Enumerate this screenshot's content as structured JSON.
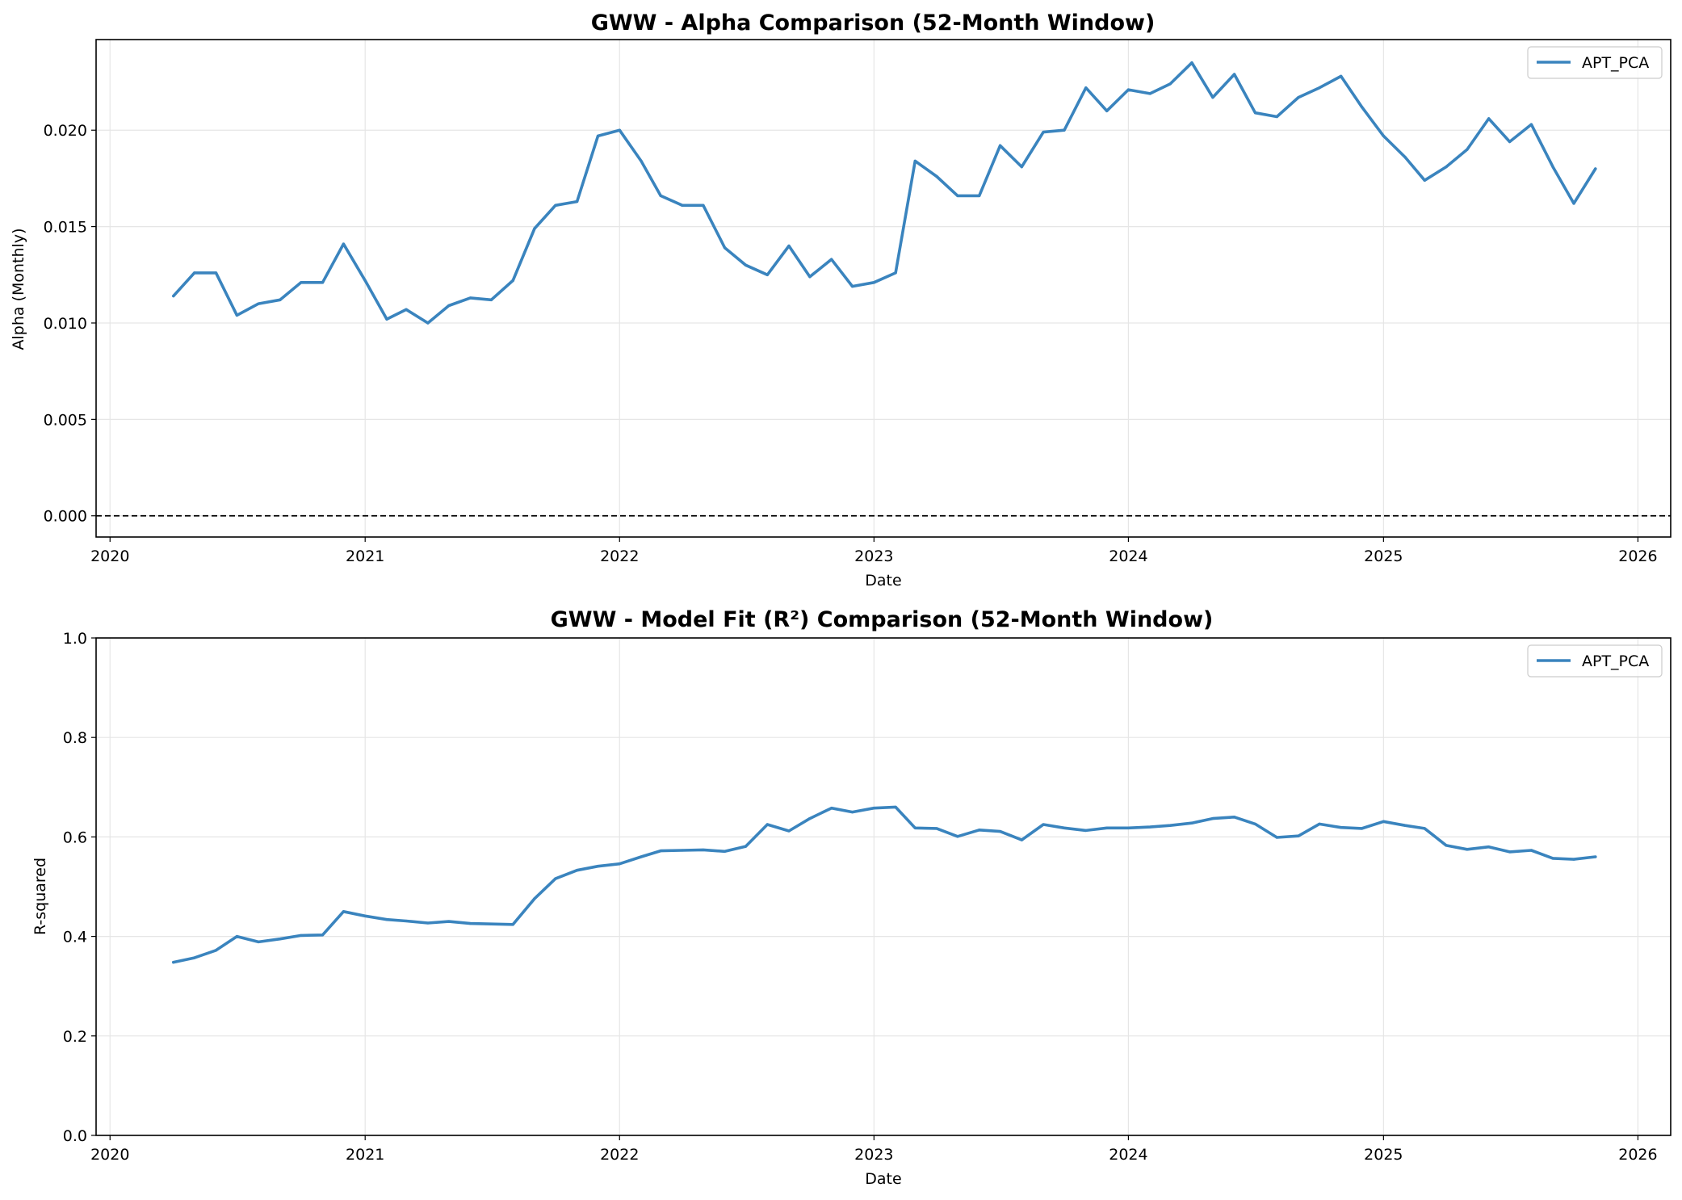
{
  "chart_data": [
    {
      "type": "line",
      "title": "GWW - Alpha Comparison (52-Month Window)",
      "xlabel": "Date",
      "ylabel": "Alpha (Monthly)",
      "xlim": [
        "2019-12-12",
        "2026-02-17"
      ],
      "ylim": [
        -0.0011,
        0.0247
      ],
      "x_ticks": [
        "2020",
        "2021",
        "2022",
        "2023",
        "2024",
        "2025",
        "2026"
      ],
      "y_ticks": [
        "0.000",
        "0.005",
        "0.010",
        "0.015",
        "0.020"
      ],
      "grid": true,
      "legend_position": "top-right",
      "reference_line": {
        "y": 0,
        "style": "dashed",
        "color": "#000000"
      },
      "series": [
        {
          "name": "APT_PCA",
          "color": "#3a84be",
          "x": [
            "2020-04-01",
            "2020-05-01",
            "2020-06-01",
            "2020-07-01",
            "2020-08-01",
            "2020-09-01",
            "2020-10-01",
            "2020-11-01",
            "2020-12-01",
            "2021-01-01",
            "2021-02-01",
            "2021-03-01",
            "2021-04-01",
            "2021-05-01",
            "2021-06-01",
            "2021-07-01",
            "2021-08-01",
            "2021-09-01",
            "2021-10-01",
            "2021-11-01",
            "2021-12-01",
            "2022-01-01",
            "2022-02-01",
            "2022-03-01",
            "2022-04-01",
            "2022-05-01",
            "2022-06-01",
            "2022-07-01",
            "2022-08-01",
            "2022-09-01",
            "2022-10-01",
            "2022-11-01",
            "2022-12-01",
            "2023-01-01",
            "2023-02-01",
            "2023-03-01",
            "2023-04-01",
            "2023-05-01",
            "2023-06-01",
            "2023-07-01",
            "2023-08-01",
            "2023-09-01",
            "2023-10-01",
            "2023-11-01",
            "2023-12-01",
            "2024-01-01",
            "2024-02-01",
            "2024-03-01",
            "2024-04-01",
            "2024-05-01",
            "2024-06-01",
            "2024-07-01",
            "2024-08-01",
            "2024-09-01",
            "2024-10-01",
            "2024-11-01",
            "2024-12-01",
            "2025-01-01",
            "2025-02-01",
            "2025-03-01",
            "2025-04-01",
            "2025-05-01",
            "2025-06-01",
            "2025-07-01",
            "2025-08-01",
            "2025-09-01",
            "2025-10-01",
            "2025-11-01"
          ],
          "y": [
            0.0114,
            0.0126,
            0.0126,
            0.0104,
            0.011,
            0.0112,
            0.0121,
            0.0121,
            0.0141,
            0.0122,
            0.0102,
            0.0107,
            0.01,
            0.0109,
            0.0113,
            0.0112,
            0.0122,
            0.0149,
            0.0161,
            0.0163,
            0.0197,
            0.02,
            0.0184,
            0.0166,
            0.0161,
            0.0161,
            0.0139,
            0.013,
            0.0125,
            0.014,
            0.0124,
            0.0133,
            0.0119,
            0.0121,
            0.0126,
            0.0184,
            0.0176,
            0.0166,
            0.0166,
            0.0192,
            0.0181,
            0.0199,
            0.02,
            0.0222,
            0.021,
            0.0221,
            0.0219,
            0.0224,
            0.0235,
            0.0217,
            0.0229,
            0.0209,
            0.0207,
            0.0217,
            0.0222,
            0.0228,
            0.0212,
            0.0197,
            0.0186,
            0.0174,
            0.0181,
            0.019,
            0.0206,
            0.0194,
            0.0203,
            0.0181,
            0.0162,
            0.018
          ]
        }
      ]
    },
    {
      "type": "line",
      "title": "GWW - Model Fit (R²) Comparison (52-Month Window)",
      "xlabel": "Date",
      "ylabel": "R-squared",
      "xlim": [
        "2019-12-12",
        "2026-02-17"
      ],
      "ylim": [
        0,
        1
      ],
      "x_ticks": [
        "2020",
        "2021",
        "2022",
        "2023",
        "2024",
        "2025",
        "2026"
      ],
      "y_ticks": [
        "0.0",
        "0.2",
        "0.4",
        "0.6",
        "0.8",
        "1.0"
      ],
      "grid": true,
      "legend_position": "top-right",
      "series": [
        {
          "name": "APT_PCA",
          "color": "#3a84be",
          "x": [
            "2020-04-01",
            "2020-05-01",
            "2020-06-01",
            "2020-07-01",
            "2020-08-01",
            "2020-09-01",
            "2020-10-01",
            "2020-11-01",
            "2020-12-01",
            "2021-01-01",
            "2021-02-01",
            "2021-03-01",
            "2021-04-01",
            "2021-05-01",
            "2021-06-01",
            "2021-07-01",
            "2021-08-01",
            "2021-09-01",
            "2021-10-01",
            "2021-11-01",
            "2021-12-01",
            "2022-01-01",
            "2022-02-01",
            "2022-03-01",
            "2022-04-01",
            "2022-05-01",
            "2022-06-01",
            "2022-07-01",
            "2022-08-01",
            "2022-09-01",
            "2022-10-01",
            "2022-11-01",
            "2022-12-01",
            "2023-01-01",
            "2023-02-01",
            "2023-03-01",
            "2023-04-01",
            "2023-05-01",
            "2023-06-01",
            "2023-07-01",
            "2023-08-01",
            "2023-09-01",
            "2023-10-01",
            "2023-11-01",
            "2023-12-01",
            "2024-01-01",
            "2024-02-01",
            "2024-03-01",
            "2024-04-01",
            "2024-05-01",
            "2024-06-01",
            "2024-07-01",
            "2024-08-01",
            "2024-09-01",
            "2024-10-01",
            "2024-11-01",
            "2024-12-01",
            "2025-01-01",
            "2025-02-01",
            "2025-03-01",
            "2025-04-01",
            "2025-05-01",
            "2025-06-01",
            "2025-07-01",
            "2025-08-01",
            "2025-09-01",
            "2025-10-01",
            "2025-11-01"
          ],
          "y": [
            0.348,
            0.357,
            0.372,
            0.4,
            0.389,
            0.395,
            0.402,
            0.403,
            0.45,
            0.441,
            0.434,
            0.431,
            0.427,
            0.43,
            0.426,
            0.425,
            0.424,
            0.476,
            0.516,
            0.533,
            0.541,
            0.546,
            0.56,
            0.572,
            0.573,
            0.574,
            0.571,
            0.581,
            0.625,
            0.612,
            0.637,
            0.658,
            0.65,
            0.658,
            0.66,
            0.618,
            0.617,
            0.601,
            0.614,
            0.611,
            0.594,
            0.625,
            0.618,
            0.613,
            0.618,
            0.618,
            0.62,
            0.623,
            0.628,
            0.637,
            0.64,
            0.626,
            0.599,
            0.602,
            0.626,
            0.619,
            0.617,
            0.631,
            0.623,
            0.617,
            0.583,
            0.575,
            0.58,
            0.57,
            0.573,
            0.557,
            0.555,
            0.56
          ]
        }
      ]
    }
  ]
}
